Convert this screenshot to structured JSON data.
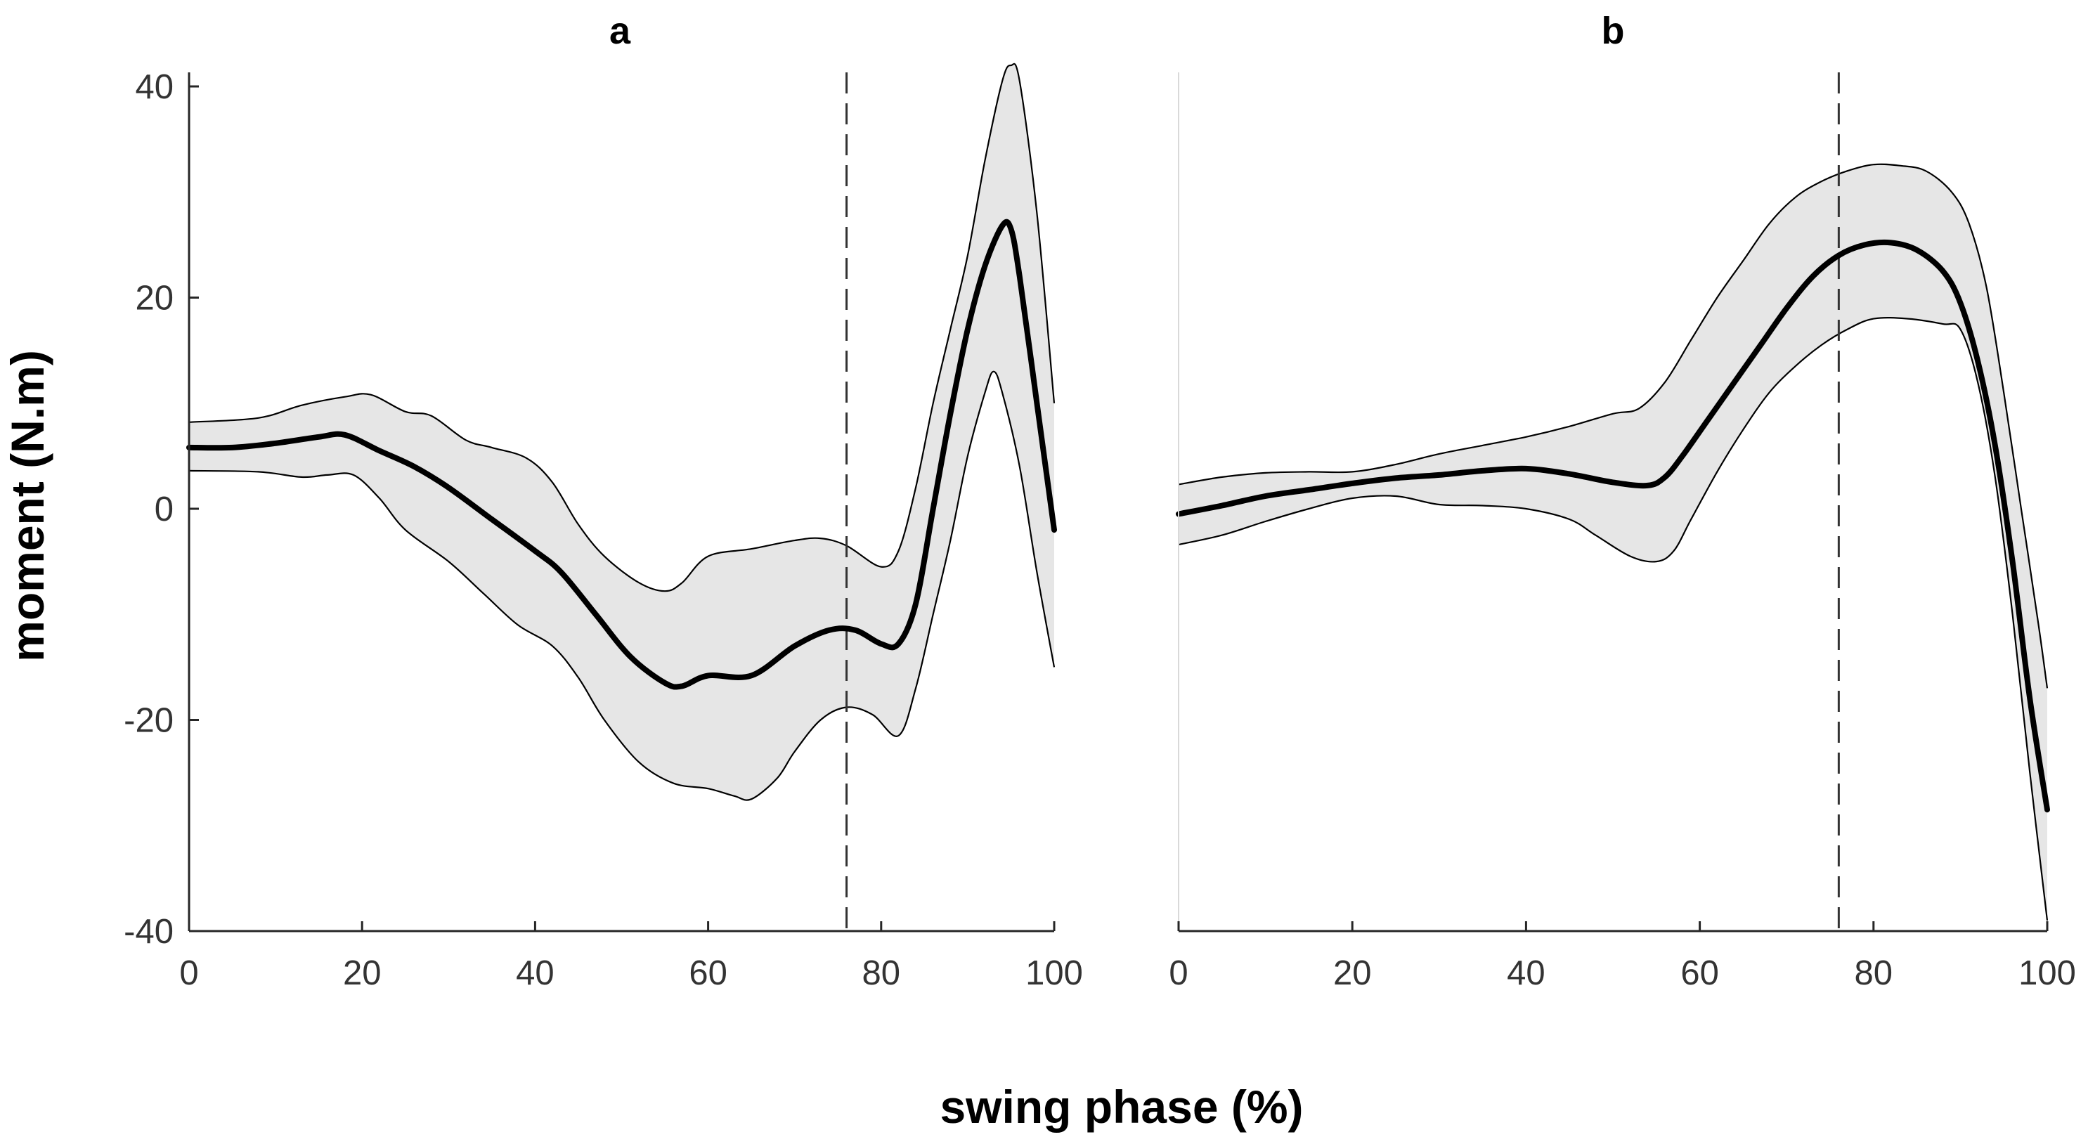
{
  "chart_data": {
    "type": "line",
    "xlabel": "swing phase (%)",
    "ylabel": "moment (N.m)",
    "xlim": [
      0,
      100
    ],
    "ylim": [
      -40,
      40
    ],
    "x_ticks": [
      0,
      20,
      40,
      60,
      80,
      100
    ],
    "y_ticks": [
      40,
      20,
      0,
      -20,
      -40
    ],
    "panels": [
      {
        "title": "a",
        "show_y_axis": true,
        "vline_x": 76,
        "mean": [
          [
            0,
            5.8
          ],
          [
            5,
            5.8
          ],
          [
            10,
            6.2
          ],
          [
            15,
            6.8
          ],
          [
            18,
            7.0
          ],
          [
            22,
            5.5
          ],
          [
            26,
            4.0
          ],
          [
            30,
            2.0
          ],
          [
            35,
            -1.0
          ],
          [
            40,
            -4.0
          ],
          [
            43,
            -6.0
          ],
          [
            47,
            -10.0
          ],
          [
            51,
            -14.0
          ],
          [
            55,
            -16.5
          ],
          [
            57,
            -16.8
          ],
          [
            60,
            -15.8
          ],
          [
            65,
            -15.8
          ],
          [
            70,
            -13.0
          ],
          [
            74,
            -11.5
          ],
          [
            77,
            -11.5
          ],
          [
            80,
            -12.8
          ],
          [
            82,
            -12.8
          ],
          [
            84,
            -9.0
          ],
          [
            86,
            0.0
          ],
          [
            88,
            9.0
          ],
          [
            90,
            17.0
          ],
          [
            92,
            23.0
          ],
          [
            94,
            26.8
          ],
          [
            95,
            26.5
          ],
          [
            96,
            22.0
          ],
          [
            98,
            10.0
          ],
          [
            100,
            -2.0
          ]
        ],
        "upper": [
          [
            0,
            8.2
          ],
          [
            8,
            8.6
          ],
          [
            13,
            9.8
          ],
          [
            18,
            10.6
          ],
          [
            21,
            10.8
          ],
          [
            25,
            9.2
          ],
          [
            28,
            8.8
          ],
          [
            32,
            6.5
          ],
          [
            35,
            5.8
          ],
          [
            39,
            4.8
          ],
          [
            42,
            2.5
          ],
          [
            45,
            -1.5
          ],
          [
            48,
            -4.5
          ],
          [
            52,
            -7.0
          ],
          [
            55,
            -7.8
          ],
          [
            57,
            -7.0
          ],
          [
            60,
            -4.5
          ],
          [
            65,
            -3.8
          ],
          [
            70,
            -3.0
          ],
          [
            73,
            -2.8
          ],
          [
            76,
            -3.5
          ],
          [
            80,
            -5.5
          ],
          [
            82,
            -4.0
          ],
          [
            84,
            2.0
          ],
          [
            86,
            10.0
          ],
          [
            88,
            17.0
          ],
          [
            90,
            24.0
          ],
          [
            92,
            33.0
          ],
          [
            94,
            40.5
          ],
          [
            95,
            42.0
          ],
          [
            96,
            40.5
          ],
          [
            98,
            28.0
          ],
          [
            100,
            10.0
          ]
        ],
        "lower": [
          [
            0,
            3.6
          ],
          [
            8,
            3.5
          ],
          [
            13,
            3.0
          ],
          [
            16,
            3.2
          ],
          [
            19,
            3.2
          ],
          [
            22,
            1.0
          ],
          [
            25,
            -2.0
          ],
          [
            30,
            -5.0
          ],
          [
            34,
            -8.0
          ],
          [
            38,
            -11.0
          ],
          [
            42,
            -13.0
          ],
          [
            45,
            -16.0
          ],
          [
            48,
            -20.0
          ],
          [
            52,
            -24.0
          ],
          [
            56,
            -26.0
          ],
          [
            60,
            -26.5
          ],
          [
            63,
            -27.2
          ],
          [
            65,
            -27.5
          ],
          [
            68,
            -25.5
          ],
          [
            70,
            -23.0
          ],
          [
            73,
            -20.0
          ],
          [
            76,
            -18.8
          ],
          [
            79,
            -19.5
          ],
          [
            82,
            -21.5
          ],
          [
            84,
            -17.0
          ],
          [
            86,
            -10.0
          ],
          [
            88,
            -3.0
          ],
          [
            90,
            5.0
          ],
          [
            92,
            11.0
          ],
          [
            93,
            13.0
          ],
          [
            94,
            11.0
          ],
          [
            96,
            4.0
          ],
          [
            98,
            -6.0
          ],
          [
            100,
            -15.0
          ]
        ]
      },
      {
        "title": "b",
        "show_y_axis": false,
        "vline_x": 76,
        "mean": [
          [
            0,
            -0.5
          ],
          [
            5,
            0.3
          ],
          [
            10,
            1.2
          ],
          [
            15,
            1.8
          ],
          [
            20,
            2.4
          ],
          [
            25,
            2.9
          ],
          [
            30,
            3.2
          ],
          [
            35,
            3.6
          ],
          [
            40,
            3.8
          ],
          [
            45,
            3.3
          ],
          [
            50,
            2.5
          ],
          [
            54,
            2.2
          ],
          [
            56,
            3.0
          ],
          [
            58,
            5.0
          ],
          [
            61,
            8.5
          ],
          [
            64,
            12.0
          ],
          [
            67,
            15.5
          ],
          [
            70,
            19.0
          ],
          [
            73,
            22.0
          ],
          [
            76,
            24.0
          ],
          [
            79,
            25.0
          ],
          [
            82,
            25.2
          ],
          [
            85,
            24.5
          ],
          [
            88,
            22.5
          ],
          [
            90,
            19.5
          ],
          [
            92,
            14.0
          ],
          [
            94,
            6.0
          ],
          [
            96,
            -5.0
          ],
          [
            98,
            -18.0
          ],
          [
            100,
            -28.5
          ]
        ],
        "upper": [
          [
            0,
            2.3
          ],
          [
            5,
            3.0
          ],
          [
            10,
            3.4
          ],
          [
            15,
            3.5
          ],
          [
            20,
            3.5
          ],
          [
            25,
            4.2
          ],
          [
            30,
            5.2
          ],
          [
            35,
            6.0
          ],
          [
            40,
            6.8
          ],
          [
            45,
            7.8
          ],
          [
            50,
            9.0
          ],
          [
            53,
            9.5
          ],
          [
            56,
            12.0
          ],
          [
            59,
            16.0
          ],
          [
            62,
            20.0
          ],
          [
            65,
            23.5
          ],
          [
            68,
            27.0
          ],
          [
            71,
            29.5
          ],
          [
            74,
            31.0
          ],
          [
            77,
            32.0
          ],
          [
            80,
            32.6
          ],
          [
            83,
            32.5
          ],
          [
            86,
            32.0
          ],
          [
            89,
            30.0
          ],
          [
            91,
            27.0
          ],
          [
            93,
            21.0
          ],
          [
            95,
            11.0
          ],
          [
            97,
            0.0
          ],
          [
            99,
            -11.0
          ],
          [
            100,
            -17.0
          ]
        ],
        "lower": [
          [
            0,
            -3.4
          ],
          [
            5,
            -2.5
          ],
          [
            10,
            -1.2
          ],
          [
            15,
            0.0
          ],
          [
            20,
            1.0
          ],
          [
            25,
            1.2
          ],
          [
            30,
            0.4
          ],
          [
            35,
            0.3
          ],
          [
            40,
            0.0
          ],
          [
            45,
            -1.0
          ],
          [
            48,
            -2.5
          ],
          [
            52,
            -4.5
          ],
          [
            55,
            -5.0
          ],
          [
            57,
            -4.0
          ],
          [
            59,
            -1.0
          ],
          [
            62,
            3.5
          ],
          [
            65,
            7.5
          ],
          [
            68,
            11.0
          ],
          [
            71,
            13.5
          ],
          [
            74,
            15.5
          ],
          [
            77,
            17.0
          ],
          [
            80,
            18.0
          ],
          [
            84,
            18.0
          ],
          [
            88,
            17.5
          ],
          [
            90,
            17.0
          ],
          [
            92,
            12.0
          ],
          [
            94,
            3.0
          ],
          [
            96,
            -10.0
          ],
          [
            98,
            -25.0
          ],
          [
            100,
            -39.0
          ]
        ]
      }
    ],
    "series_style": {
      "mean_color": "#000000",
      "band_fill": "#e6e6e6",
      "band_edge": "#000000",
      "axis_color": "#262626",
      "vline_color": "#333333"
    }
  }
}
